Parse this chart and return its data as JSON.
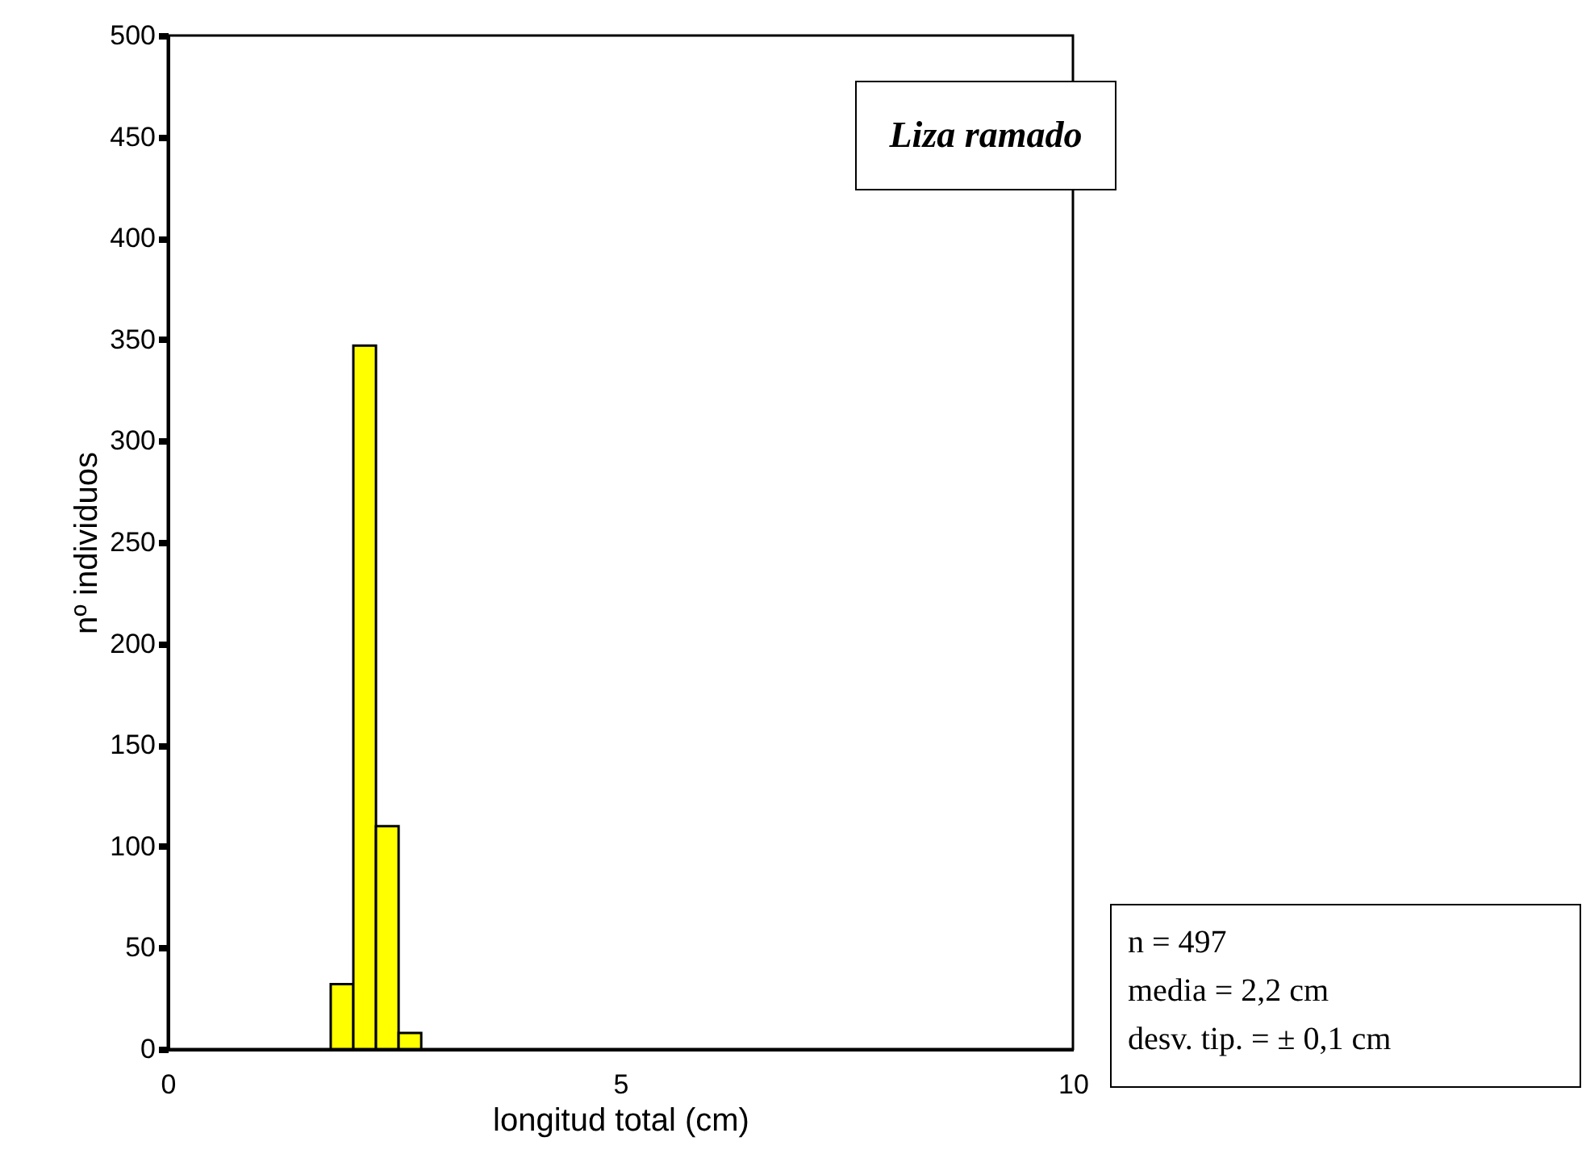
{
  "chart_data": {
    "type": "histogram",
    "title": "Liza ramado",
    "xlabel": "longitud total (cm)",
    "ylabel": "nº individuos",
    "bins": [
      1.8,
      2.05,
      2.3,
      2.55,
      2.8
    ],
    "values": [
      32,
      347,
      110,
      8
    ],
    "color": "#ffff00",
    "xlim": [
      0,
      10
    ],
    "xticks": [
      0,
      5,
      10
    ],
    "ylim": [
      0,
      500
    ],
    "yticks": [
      0,
      50,
      100,
      150,
      200,
      250,
      300,
      350,
      400,
      450,
      500
    ],
    "grid": false,
    "annotations": [
      "n = 497",
      "media = 2,2 cm",
      "desv. tip. = ± 0,1 cm"
    ]
  }
}
